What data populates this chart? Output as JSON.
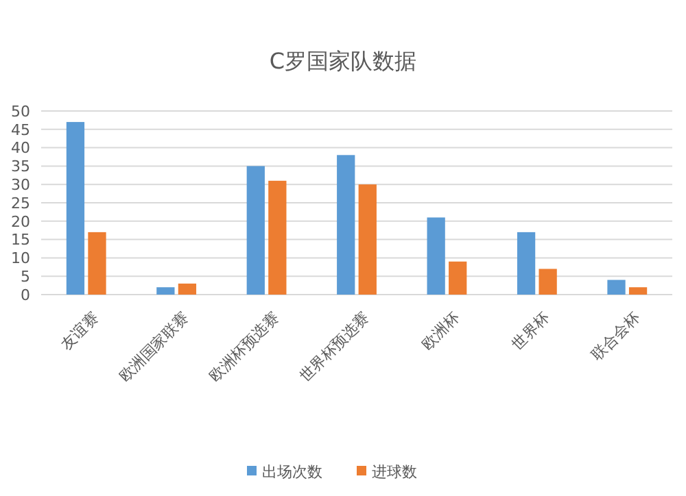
{
  "chart_data": {
    "type": "bar",
    "title": "C罗国家队数据",
    "categories": [
      "友谊赛",
      "欧洲国家联赛",
      "欧洲杯预选赛",
      "世界杯预选赛",
      "欧洲杯",
      "世界杯",
      "联合会杯"
    ],
    "series": [
      {
        "name": "出场次数",
        "color": "#5b9bd5",
        "values": [
          47,
          2,
          35,
          38,
          21,
          17,
          4
        ]
      },
      {
        "name": "进球数",
        "color": "#ed7d31",
        "values": [
          17,
          3,
          31,
          30,
          9,
          7,
          2
        ]
      }
    ],
    "ylim": [
      0,
      50
    ],
    "yticks": [
      0,
      5,
      10,
      15,
      20,
      25,
      30,
      35,
      40,
      45,
      50
    ],
    "grid": "y",
    "legend": "bottom"
  }
}
